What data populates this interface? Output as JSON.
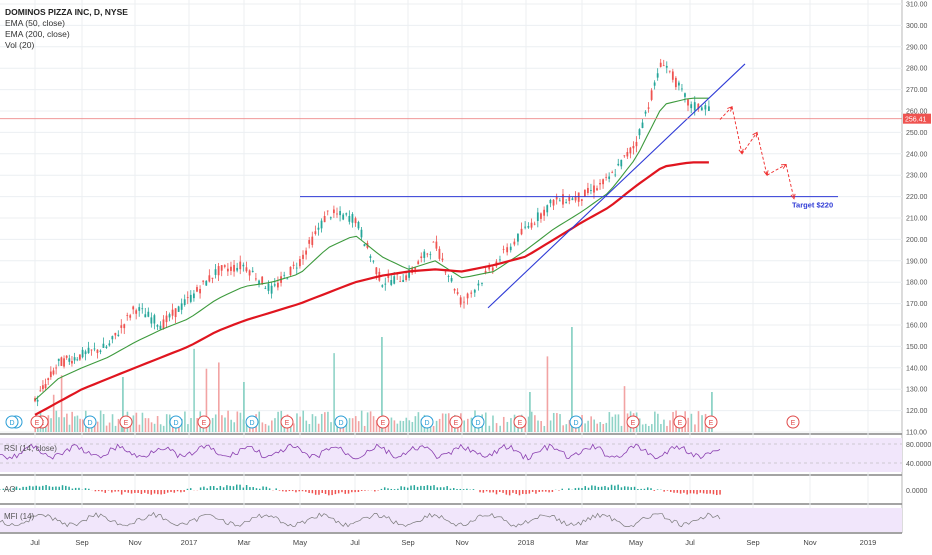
{
  "header": {
    "title": "DOMINOS PIZZA INC, D, NYSE",
    "indicators": [
      "EMA (50, close)",
      "EMA (200, close)",
      "Vol (20)"
    ]
  },
  "panes": {
    "rsi": "RSI (14, close)",
    "ao": "AO",
    "mfi": "MFI (14)"
  },
  "price_axis": {
    "ticks": [
      "310.00",
      "300.00",
      "290.00",
      "280.00",
      "270.00",
      "260.00",
      "250.00",
      "240.00",
      "230.00",
      "220.00",
      "210.00",
      "200.00",
      "190.00",
      "180.00",
      "170.00",
      "160.00",
      "150.00",
      "140.00",
      "130.00",
      "120.00",
      "110.00"
    ],
    "last_price": "256.41"
  },
  "rsi_axis": {
    "ticks": [
      "80.0000",
      "40.0000"
    ]
  },
  "ao_axis": {
    "ticks": [
      "0.0000"
    ]
  },
  "time_axis": {
    "ticks": [
      "Jul",
      "Sep",
      "Nov",
      "2017",
      "Mar",
      "May",
      "Jul",
      "Sep",
      "Nov",
      "2018",
      "Mar",
      "May",
      "Jul",
      "Sep",
      "Nov",
      "2019"
    ]
  },
  "annotations": {
    "target": "Target $220"
  },
  "events": [
    "D",
    "E",
    "D",
    "E",
    "D",
    "E",
    "D",
    "E",
    "D",
    "E",
    "D",
    "E",
    "D",
    "E",
    "D",
    "E",
    "E",
    "E",
    "D",
    "E",
    "E"
  ],
  "colors": {
    "up": "#26a69a",
    "down": "#ef5350",
    "ema50": "#3d9a3d",
    "ema200": "#e0151f",
    "trend": "#2f3bd6",
    "arrow": "#ef2b2b",
    "oscillator": "#8b40b0",
    "band": "#f1e6fb"
  },
  "chart_data": {
    "type": "line",
    "title": "DOMINOS PIZZA INC, D, NYSE",
    "x": [
      "Jul 2016",
      "Aug 2016",
      "Sep 2016",
      "Oct 2016",
      "Nov 2016",
      "Dec 2016",
      "Jan 2017",
      "Feb 2017",
      "Mar 2017",
      "Apr 2017",
      "May 2017",
      "Jun 2017",
      "Jul 2017",
      "Aug 2017",
      "Sep 2017",
      "Oct 2017",
      "Nov 2017",
      "Dec 2017",
      "Jan 2018",
      "Feb 2018",
      "Mar 2018",
      "Apr 2018",
      "May 2018",
      "Jun 2018",
      "Jul 2018"
    ],
    "series": [
      {
        "name": "Close",
        "values": [
          124,
          142,
          146,
          150,
          168,
          160,
          172,
          185,
          188,
          176,
          190,
          212,
          210,
          180,
          183,
          198,
          170,
          188,
          205,
          218,
          220,
          228,
          245,
          284,
          262
        ]
      },
      {
        "name": "EMA (50, close)",
        "values": [
          125,
          135,
          140,
          145,
          152,
          158,
          163,
          172,
          178,
          180,
          184,
          196,
          202,
          192,
          186,
          190,
          182,
          185,
          195,
          205,
          213,
          222,
          238,
          263,
          266
        ]
      },
      {
        "name": "EMA (200, close)",
        "values": [
          118,
          124,
          130,
          135,
          140,
          145,
          150,
          157,
          162,
          166,
          170,
          175,
          180,
          183,
          185,
          186,
          185,
          188,
          192,
          200,
          208,
          215,
          225,
          234,
          236
        ]
      }
    ],
    "ylim": [
      110,
      310
    ],
    "levels": [
      {
        "label": "Target $220",
        "value": 220
      }
    ]
  }
}
